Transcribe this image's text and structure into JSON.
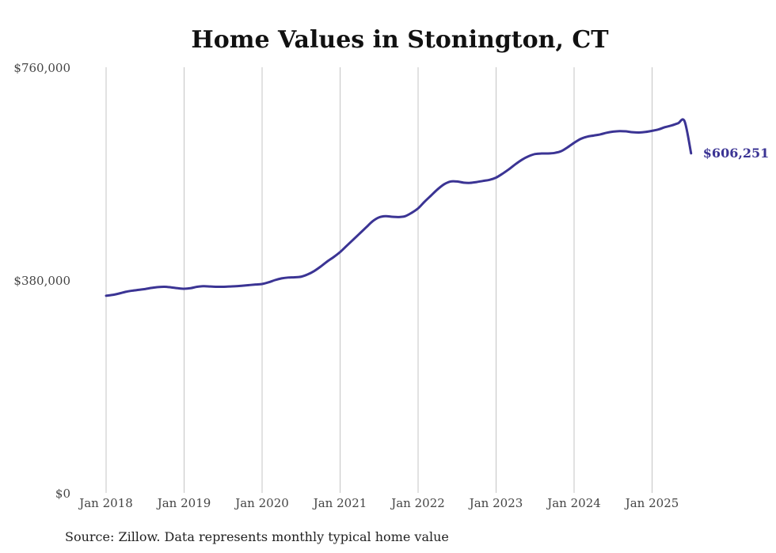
{
  "chart_data": {
    "type": "line",
    "title": "Home Values in Stonington, CT",
    "xlabel": "",
    "ylabel": "",
    "source": "Source: Zillow. Data represents monthly typical home value",
    "ylim": [
      0,
      760000
    ],
    "y_ticks": [
      "$0",
      "$380,000",
      "$760,000"
    ],
    "y_tick_values": [
      0,
      380000,
      760000
    ],
    "x_ticks": [
      "Jan 2018",
      "Jan 2019",
      "Jan 2020",
      "Jan 2021",
      "Jan 2022",
      "Jan 2023",
      "Jan 2024",
      "Jan 2025"
    ],
    "grid": "vertical",
    "color": "#3b3494",
    "end_label": "$606,251",
    "series": [
      {
        "x": [
          "2018-01",
          "2018-02",
          "2018-03",
          "2018-04",
          "2018-05",
          "2018-06",
          "2018-07",
          "2018-08",
          "2018-09",
          "2018-10",
          "2018-11",
          "2018-12",
          "2019-01",
          "2019-02",
          "2019-03",
          "2019-04",
          "2019-05",
          "2019-06",
          "2019-07",
          "2019-08",
          "2019-09",
          "2019-10",
          "2019-11",
          "2019-12",
          "2020-01",
          "2020-02",
          "2020-03",
          "2020-04",
          "2020-05",
          "2020-06",
          "2020-07",
          "2020-08",
          "2020-09",
          "2020-10",
          "2020-11",
          "2020-12",
          "2021-01",
          "2021-02",
          "2021-03",
          "2021-04",
          "2021-05",
          "2021-06",
          "2021-07",
          "2021-08",
          "2021-09",
          "2021-10",
          "2021-11",
          "2021-12",
          "2022-01",
          "2022-02",
          "2022-03",
          "2022-04",
          "2022-05",
          "2022-06",
          "2022-07",
          "2022-08",
          "2022-09",
          "2022-10",
          "2022-11",
          "2022-12",
          "2023-01",
          "2023-02",
          "2023-03",
          "2023-04",
          "2023-05",
          "2023-06",
          "2023-07",
          "2023-08",
          "2023-09",
          "2023-10",
          "2023-11",
          "2023-12",
          "2024-01",
          "2024-02",
          "2024-03",
          "2024-04",
          "2024-05",
          "2024-06",
          "2024-07",
          "2024-08",
          "2024-09",
          "2024-10",
          "2024-11",
          "2024-12",
          "2025-01",
          "2025-02",
          "2025-03",
          "2025-04",
          "2025-05",
          "2025-06",
          "2025-07"
        ],
        "values": [
          352000,
          353500,
          356000,
          359000,
          361000,
          362500,
          364000,
          366000,
          367500,
          368000,
          367000,
          365500,
          364500,
          365500,
          368000,
          369000,
          368500,
          368000,
          368000,
          368500,
          369000,
          370000,
          371000,
          372000,
          373000,
          376000,
          380000,
          383000,
          384500,
          385000,
          386000,
          390000,
          396000,
          404000,
          413000,
          421000,
          430000,
          441000,
          452000,
          463000,
          474000,
          485000,
          492000,
          494000,
          493000,
          492500,
          494000,
          500000,
          508000,
          520000,
          531000,
          542000,
          551000,
          556000,
          556000,
          554000,
          553500,
          555000,
          557000,
          559000,
          563000,
          570000,
          578000,
          587000,
          595000,
          601000,
          605000,
          606000,
          606000,
          607000,
          610000,
          617000,
          625000,
          632000,
          636000,
          638000,
          640000,
          643000,
          645000,
          646000,
          645500,
          644000,
          643500,
          644500,
          646500,
          649000,
          653000,
          656000,
          660000,
          663500,
          606251
        ]
      }
    ]
  }
}
